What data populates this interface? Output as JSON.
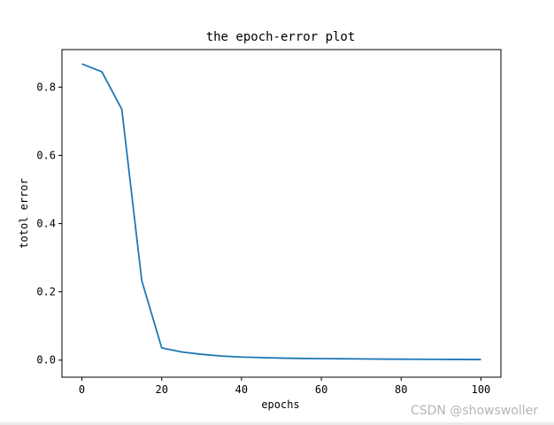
{
  "chart_data": {
    "type": "line",
    "title": "the epoch-error plot",
    "xlabel": "epochs",
    "ylabel": "totol error",
    "xlim": [
      -5,
      105
    ],
    "ylim": [
      -0.05,
      0.91
    ],
    "xticks": [
      0,
      20,
      40,
      60,
      80,
      100
    ],
    "yticks": [
      0.0,
      0.2,
      0.4,
      0.6,
      0.8
    ],
    "xtick_labels": [
      "0",
      "20",
      "40",
      "60",
      "80",
      "100"
    ],
    "ytick_labels": [
      "0.0",
      "0.2",
      "0.4",
      "0.6",
      "0.8"
    ],
    "grid": false,
    "series": [
      {
        "color": "#1f77b4",
        "x": [
          0,
          5,
          10,
          15,
          20,
          25,
          30,
          35,
          40,
          45,
          50,
          55,
          60,
          65,
          70,
          75,
          80,
          85,
          90,
          95,
          100
        ],
        "y": [
          0.868,
          0.845,
          0.735,
          0.233,
          0.036,
          0.024,
          0.017,
          0.012,
          0.009,
          0.0075,
          0.006,
          0.005,
          0.0045,
          0.004,
          0.0035,
          0.003,
          0.0027,
          0.0025,
          0.0022,
          0.002,
          0.0018
        ]
      }
    ]
  },
  "watermark": "CSDN @showswoller"
}
